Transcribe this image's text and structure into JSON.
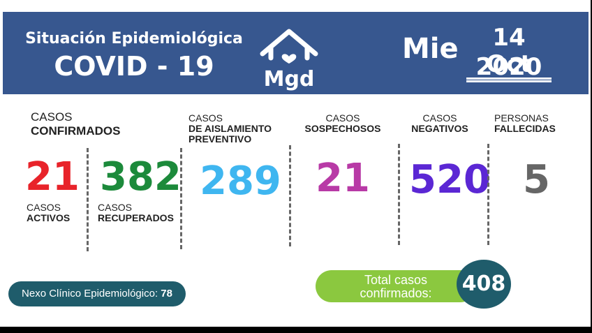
{
  "header": {
    "title_line1": "Situación Epidemiológica",
    "title_line2": "COVID - 19",
    "logo_text": "Mgd",
    "day": "Mie",
    "date_line1": "14 Oct",
    "date_line2": "2020",
    "bg_color": "#37578f"
  },
  "confirmados": {
    "label_line1": "CASOS",
    "label_line2": "CONFIRMADOS"
  },
  "activos": {
    "value": "21",
    "label_line1": "CASOS",
    "label_line2": "ACTIVOS",
    "color": "#e8232a"
  },
  "recuperados": {
    "value": "382",
    "label_line1": "CASOS",
    "label_line2": "RECUPERADOS",
    "color": "#1c8a3b"
  },
  "aislamiento": {
    "label_line1": "CASOS",
    "label_line2": "DE AISLAMIENTO",
    "label_line3": "PREVENTIVO",
    "value": "289",
    "color": "#3fb6f0"
  },
  "sospechosos": {
    "label_line1": "CASOS",
    "label_line2": "SOSPECHOSOS",
    "value": "21",
    "color": "#b83aa6"
  },
  "negativos": {
    "label_line1": "CASOS",
    "label_line2": "NEGATIVOS",
    "value": "520",
    "color": "#5b27d4"
  },
  "fallecidas": {
    "label_line1": "PERSONAS",
    "label_line2": "FALLECIDAS",
    "value": "5",
    "color": "#666666"
  },
  "nexo": {
    "label": "Nexo Clínico Epidemiológico:",
    "value": "78"
  },
  "total": {
    "label_line1": "Total casos",
    "label_line2": "confirmados:",
    "value": "408"
  }
}
